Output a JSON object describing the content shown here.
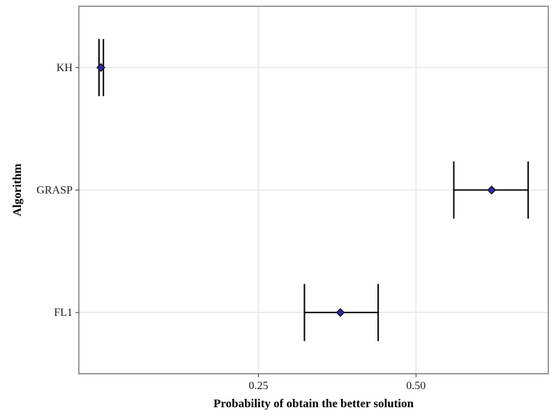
{
  "chart_data": {
    "type": "errorbar",
    "title": "",
    "xlabel": "Probability of obtain the better solution",
    "ylabel": "Algorithm",
    "categories": [
      "FL1",
      "GRASP",
      "KH"
    ],
    "xlim": [
      -0.035,
      0.71
    ],
    "x_ticks": [
      0.25,
      0.5
    ],
    "x_tick_labels": [
      "0.25",
      "0.50"
    ],
    "grid": true,
    "legend": "none",
    "points": [
      {
        "category": "FL1",
        "estimate": 0.38,
        "lower": 0.323,
        "upper": 0.44
      },
      {
        "category": "GRASP",
        "estimate": 0.62,
        "lower": 0.56,
        "upper": 0.678
      },
      {
        "category": "KH",
        "estimate": 0.0,
        "lower": -0.003,
        "upper": 0.004
      }
    ],
    "colors": {
      "marker_fill": "#2b2ba8",
      "marker_edge": "#000000",
      "errorbar": "#000000",
      "grid": "#ebebeb",
      "panel_border": "#333333"
    }
  }
}
